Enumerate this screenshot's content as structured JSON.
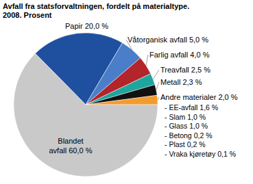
{
  "chart_data": {
    "type": "pie",
    "title": "Avfall fra statsforvaltningen, fordelt på materialtype. 2008. Prosent",
    "categories": [
      "Papir",
      "Våtorganisk avfall",
      "Farlig avfall",
      "Treavfall",
      "Metall",
      "Andre materialer",
      "Blandet avfall"
    ],
    "values": [
      20.0,
      5.0,
      4.0,
      2.5,
      2.3,
      2.0,
      60.0
    ],
    "value_labels": [
      "20,0 %",
      "5,0 %",
      "4,0 %",
      "2,5 %",
      "2,3 %",
      "2,0 %",
      "60,0 %"
    ],
    "colors": [
      "#1f4f9f",
      "#4a7ec8",
      "#b3242b",
      "#1fa59e",
      "#111111",
      "#f39b2e",
      "#c9c9c9"
    ],
    "data_labels": true,
    "breakdown": {
      "categories": [
        "- EE-avfall",
        "- Slam",
        "- Glass",
        "- Betong",
        "- Plast",
        "- Vraka kjøretøy"
      ],
      "values": [
        1.6,
        1.0,
        1.0,
        0.2,
        0.2,
        0.1
      ],
      "value_labels": [
        "1,6 %",
        "1,0 %",
        "1,0 %",
        "0,2 %",
        "0,2 %",
        "0,1 %"
      ]
    }
  }
}
